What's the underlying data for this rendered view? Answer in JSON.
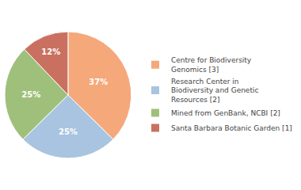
{
  "chart_data": {
    "type": "pie",
    "categories": [
      "Centre for Biodiversity\nGenomics [3]",
      "Research Center in\nBiodiversity and Genetic\nResources [2]",
      "Mined from GenBank, NCBI [2]",
      "Santa Barbara Botanic Garden [1]"
    ],
    "values": [
      37,
      25,
      25,
      12
    ],
    "value_labels": [
      "37%",
      "25%",
      "25%",
      "12%"
    ],
    "colors": [
      "#f5a87a",
      "#a8c4e0",
      "#9fc07a",
      "#c97060"
    ],
    "data_labels": true,
    "legend": "right"
  }
}
